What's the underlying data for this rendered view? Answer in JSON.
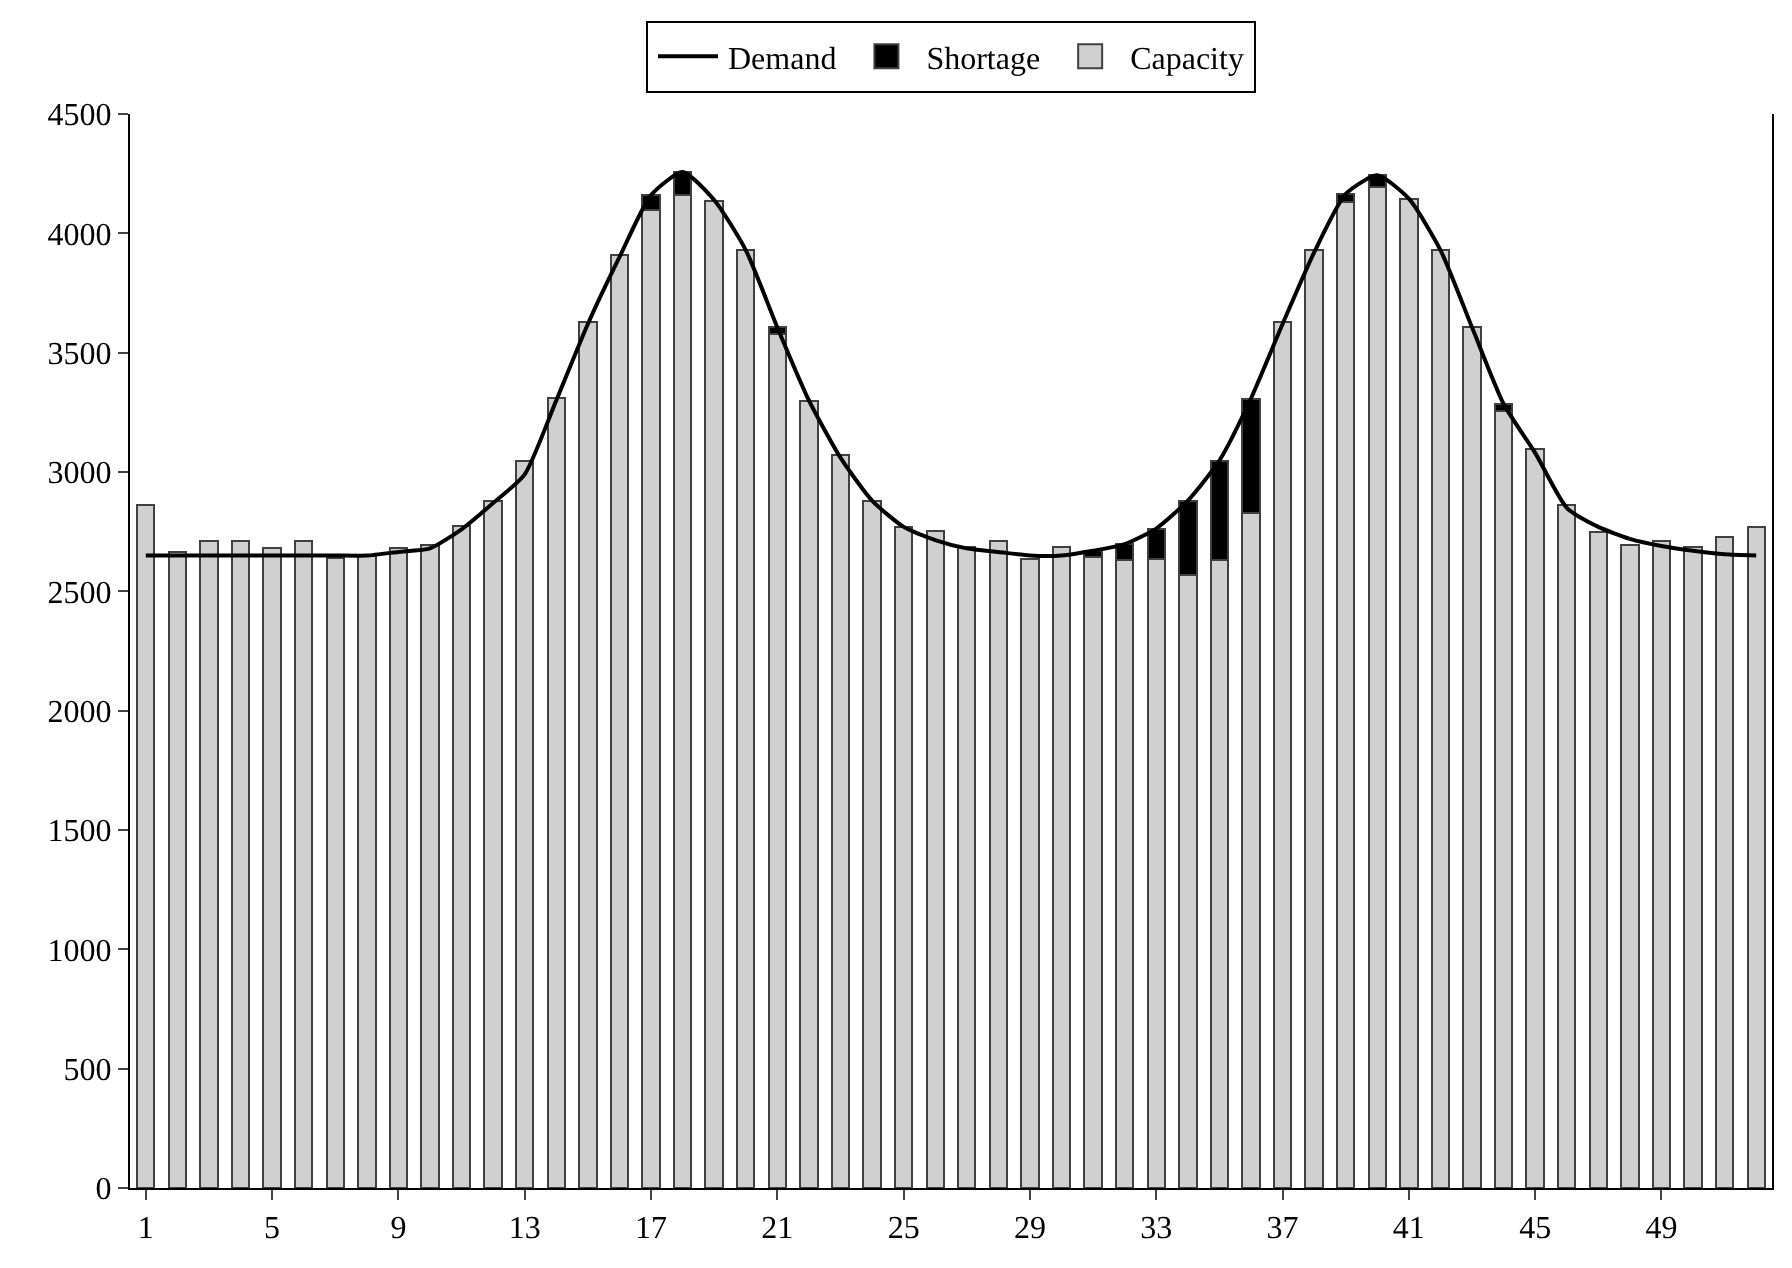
{
  "chart_data": {
    "type": "bar",
    "stacked": true,
    "legend": "top",
    "categories": [
      "1",
      null,
      null,
      null,
      "5",
      null,
      null,
      null,
      "9",
      null,
      null,
      null,
      "13",
      null,
      null,
      null,
      "17",
      null,
      null,
      null,
      "21",
      null,
      null,
      null,
      "25",
      null,
      null,
      null,
      "29",
      null,
      null,
      null,
      "33",
      null,
      null,
      null,
      "37",
      null,
      null,
      null,
      "41",
      null,
      null,
      null,
      "45",
      null,
      null,
      null,
      "49",
      null,
      null,
      null
    ],
    "series": [
      {
        "name": "Capacity",
        "color": "#d0d0d0",
        "values": [
          2860,
          2665,
          2710,
          2710,
          2682,
          2710,
          2640,
          2650,
          2682,
          2693,
          2774,
          2880,
          3048,
          3310,
          3628,
          3908,
          4098,
          4160,
          4137,
          3930,
          3578,
          3299,
          3070,
          2880,
          2771,
          2751,
          2684,
          2710,
          2634,
          2684,
          2642,
          2631,
          2637,
          2567,
          2631,
          2827,
          3628,
          3930,
          4131,
          4193,
          4145,
          3930,
          3606,
          3257,
          3098,
          2860,
          2749,
          2693,
          2712,
          2684,
          2729,
          2771
        ]
      },
      {
        "name": "Shortage",
        "color": "#000000",
        "values": [
          null,
          null,
          null,
          null,
          null,
          null,
          null,
          null,
          null,
          null,
          null,
          null,
          null,
          null,
          null,
          null,
          62,
          97,
          null,
          null,
          28,
          null,
          null,
          null,
          null,
          null,
          null,
          null,
          null,
          null,
          28,
          67,
          126,
          313,
          417,
          481,
          null,
          null,
          34,
          50,
          null,
          null,
          null,
          28,
          null,
          null,
          null,
          null,
          null,
          null,
          null,
          null
        ]
      },
      {
        "name": "Demand",
        "type": "line",
        "color": "#000000",
        "marker": "none",
        "line_style": "solid",
        "values": [
          2650,
          2650,
          2650,
          2650,
          2650,
          2650,
          2650,
          2650,
          2665,
          2680,
          2760,
          2870,
          2990,
          3300,
          3620,
          3900,
          4160,
          4257,
          4140,
          3930,
          3606,
          3300,
          3060,
          2880,
          2770,
          2715,
          2680,
          2665,
          2650,
          2650,
          2670,
          2698,
          2763,
          2880,
          3048,
          3308,
          3620,
          3920,
          4165,
          4243,
          4145,
          3930,
          3606,
          3285,
          3080,
          2850,
          2770,
          2720,
          2690,
          2670,
          2655,
          2650
        ]
      }
    ],
    "ylim": [
      0,
      4500
    ],
    "yticks": [
      0,
      500,
      1000,
      1500,
      2000,
      2500,
      3000,
      3500,
      4000,
      4500
    ]
  }
}
